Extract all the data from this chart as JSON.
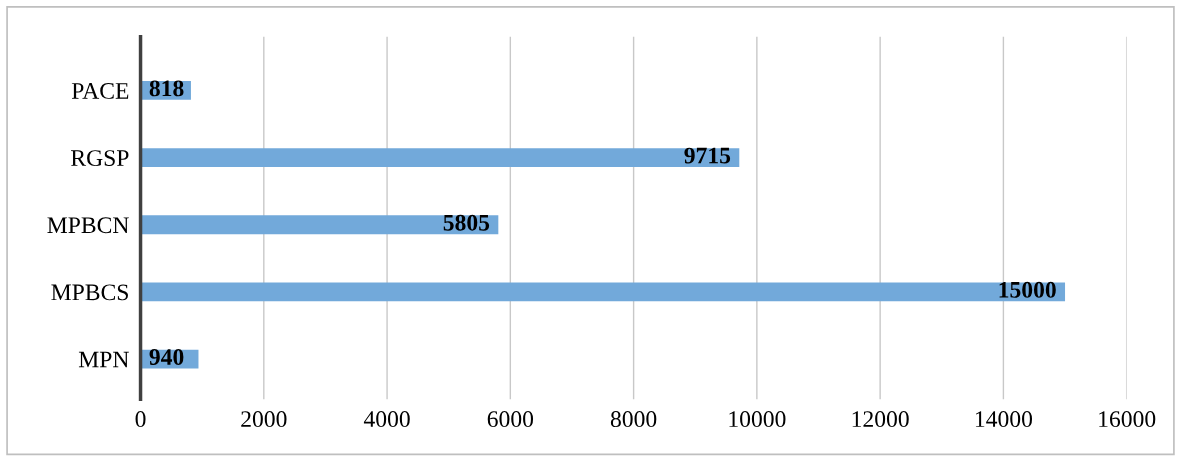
{
  "chart_data": {
    "type": "bar",
    "orientation": "horizontal",
    "categories": [
      "PACE",
      "RGSP",
      "MPBCN",
      "MPBCS",
      "MPN"
    ],
    "values": [
      818,
      9715,
      5805,
      15000,
      940
    ],
    "color": "#72a9da",
    "xlim": [
      0,
      16000
    ],
    "xticks": [
      0,
      2000,
      4000,
      6000,
      8000,
      10000,
      12000,
      14000,
      16000
    ],
    "grid": "x",
    "data_labels": true,
    "legend": false
  }
}
